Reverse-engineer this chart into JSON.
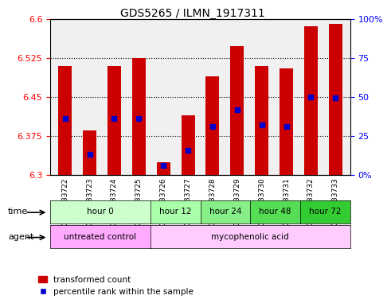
{
  "title": "GDS5265 / ILMN_1917311",
  "samples": [
    "GSM1133722",
    "GSM1133723",
    "GSM1133724",
    "GSM1133725",
    "GSM1133726",
    "GSM1133727",
    "GSM1133728",
    "GSM1133729",
    "GSM1133730",
    "GSM1133731",
    "GSM1133732",
    "GSM1133733"
  ],
  "bar_tops": [
    6.51,
    6.385,
    6.51,
    6.525,
    6.325,
    6.415,
    6.49,
    6.547,
    6.51,
    6.505,
    6.585,
    6.59
  ],
  "blue_vals": [
    6.408,
    6.34,
    6.408,
    6.408,
    6.318,
    6.348,
    6.393,
    6.425,
    6.397,
    6.393,
    6.45,
    6.448
  ],
  "ymin": 6.3,
  "ymax": 6.6,
  "bar_color": "#cc0000",
  "blue_color": "#0000cc",
  "bar_width": 0.55,
  "time_groups": [
    {
      "label": "hour 0",
      "start": 0,
      "end": 4,
      "color": "#ccffcc"
    },
    {
      "label": "hour 12",
      "start": 4,
      "end": 6,
      "color": "#aaffaa"
    },
    {
      "label": "hour 24",
      "start": 6,
      "end": 8,
      "color": "#88ee88"
    },
    {
      "label": "hour 48",
      "start": 8,
      "end": 10,
      "color": "#55dd55"
    },
    {
      "label": "hour 72",
      "start": 10,
      "end": 12,
      "color": "#33cc33"
    }
  ],
  "agent_groups": [
    {
      "label": "untreated control",
      "start": 0,
      "end": 4,
      "color": "#ffaaff"
    },
    {
      "label": "mycophenolic acid",
      "start": 4,
      "end": 12,
      "color": "#ffccff"
    }
  ],
  "legend_red_label": "transformed count",
  "legend_blue_label": "percentile rank within the sample",
  "time_label": "time",
  "agent_label": "agent"
}
